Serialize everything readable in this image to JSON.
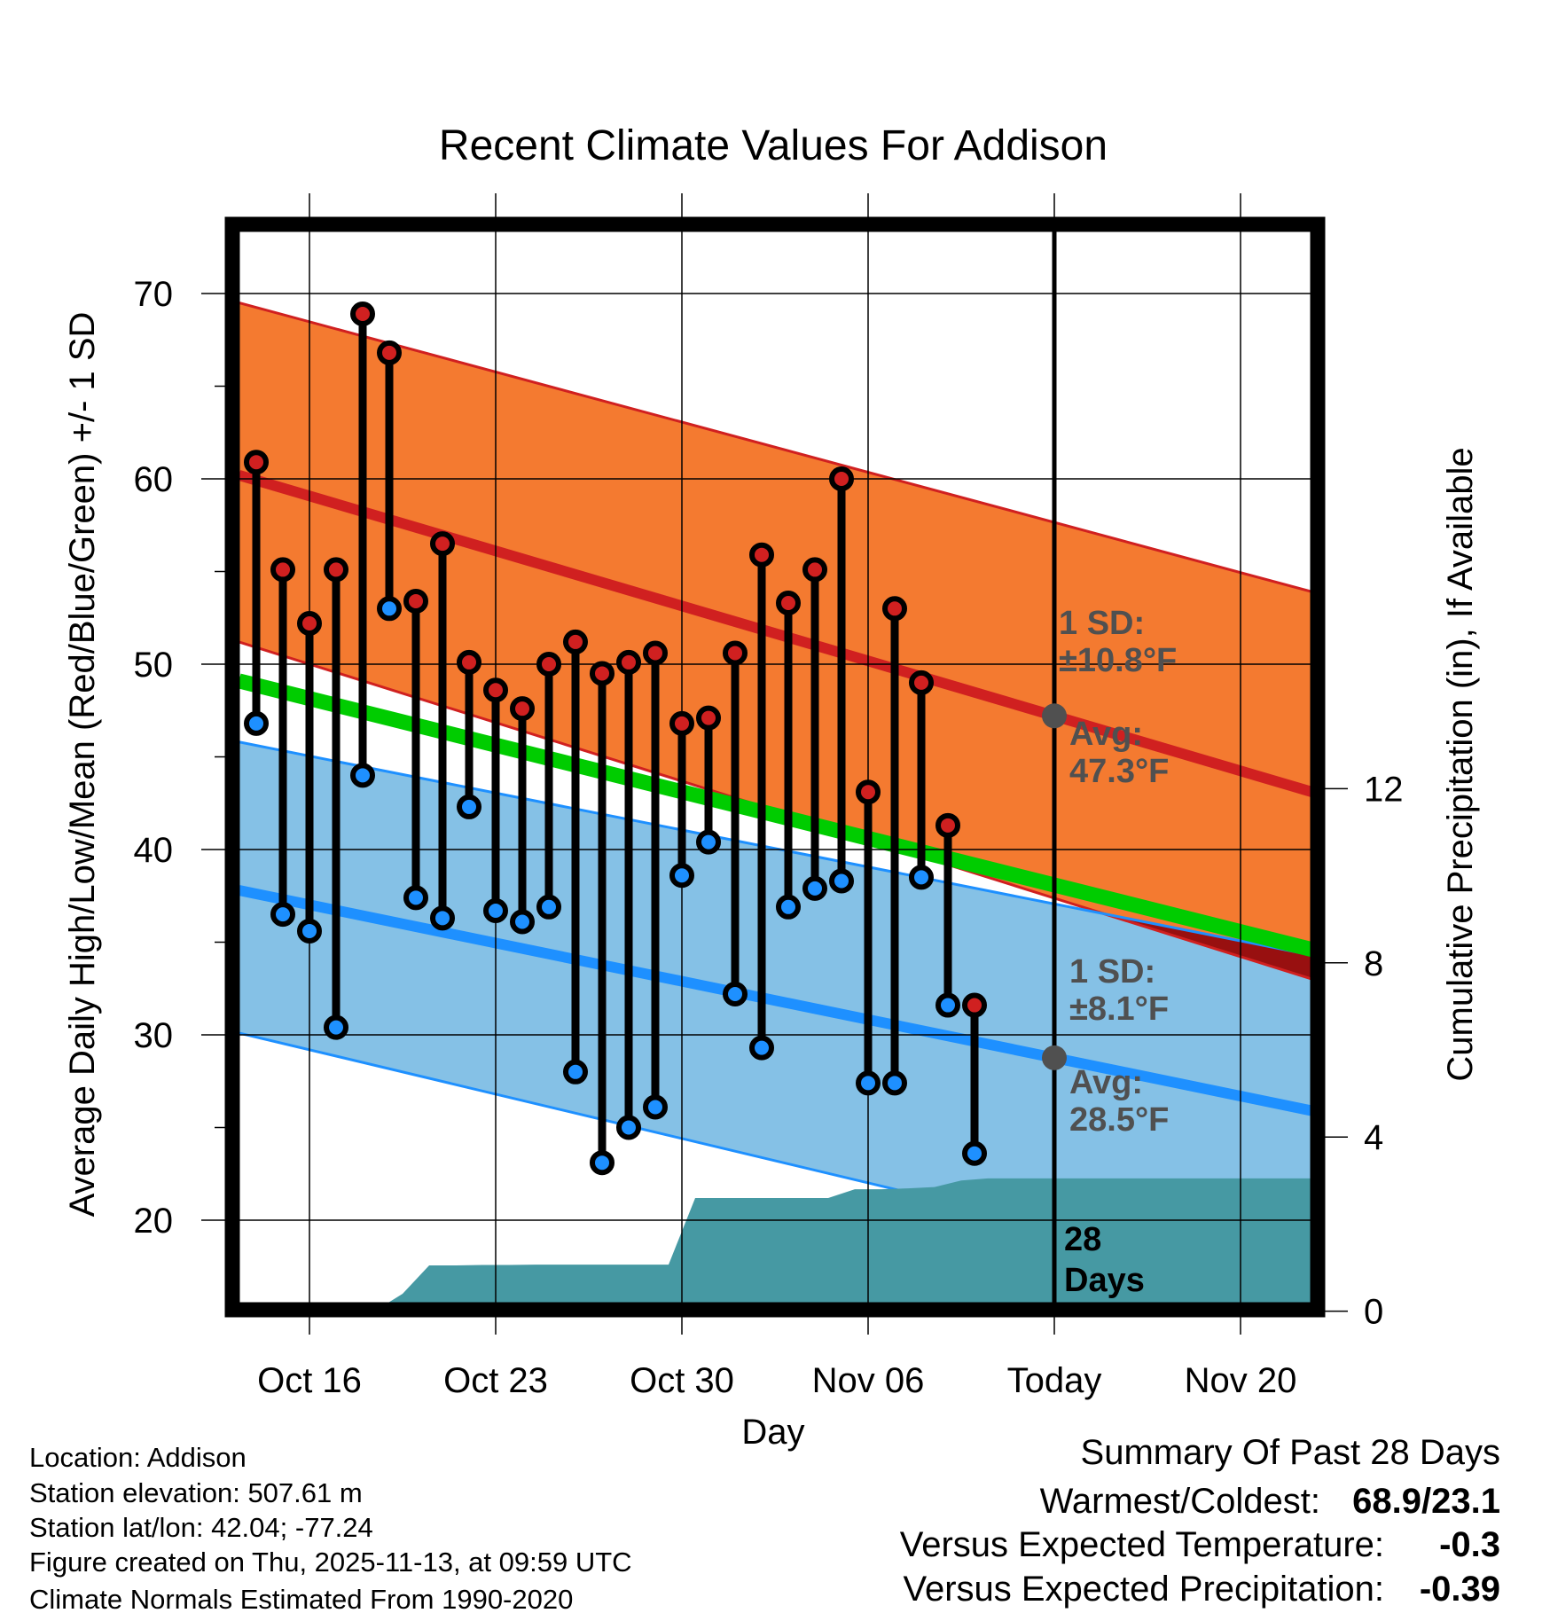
{
  "chart_data": {
    "type": "line",
    "title": "Recent Climate Values For Addison",
    "xlabel": "Day",
    "ylabel": "Average Daily High/Low/Mean (Red/Blue/Green) +/- 1 SD",
    "y2label": "Cumulative Precipitation (in), If Available",
    "ylim": [
      15.1,
      73.5
    ],
    "y2lim": [
      0,
      15.2
    ],
    "yticks": [
      "70",
      "60",
      "50",
      "40",
      "30",
      "20"
    ],
    "y2ticks": [
      "12",
      "8",
      "4",
      "0"
    ],
    "xticks": [
      "Oct 16",
      "Oct 23",
      "Oct 30",
      "Nov 06",
      "Today",
      "Nov 20"
    ],
    "grid": true,
    "dates": [
      "Oct 14",
      "Oct 15",
      "Oct 16",
      "Oct 17",
      "Oct 18",
      "Oct 19",
      "Oct 20",
      "Oct 21",
      "Oct 22",
      "Oct 23",
      "Oct 24",
      "Oct 25",
      "Oct 26",
      "Oct 27",
      "Oct 28",
      "Oct 29",
      "Oct 30",
      "Oct 31",
      "Nov 01",
      "Nov 02",
      "Nov 03",
      "Nov 04",
      "Nov 05",
      "Nov 06",
      "Nov 07",
      "Nov 08",
      "Nov 09",
      "Nov 10"
    ],
    "series": [
      {
        "name": "Daily High",
        "color": "#d02020",
        "values": [
          60.9,
          55.1,
          52.2,
          55.1,
          68.9,
          66.8,
          53.4,
          56.5,
          50.1,
          48.6,
          47.6,
          50.0,
          51.2,
          49.5,
          50.1,
          50.6,
          46.8,
          47.1,
          50.6,
          55.9,
          53.3,
          55.1,
          60.0,
          43.1,
          53.0,
          49.0,
          41.3,
          31.6
        ]
      },
      {
        "name": "Daily Low",
        "color": "#1e90ff",
        "values": [
          46.8,
          36.5,
          35.6,
          30.4,
          44.0,
          53.0,
          37.4,
          36.3,
          42.3,
          36.7,
          36.1,
          36.9,
          28.0,
          23.1,
          25.0,
          26.1,
          38.6,
          40.4,
          32.2,
          29.3,
          36.9,
          37.9,
          38.3,
          27.4,
          27.4,
          38.5,
          31.6,
          23.6
        ]
      },
      {
        "name": "Cumulative Precipitation",
        "color": "#4699a3",
        "values": [
          0,
          0,
          0,
          0,
          0.02,
          0.4,
          1.05,
          1.05,
          1.06,
          1.06,
          1.07,
          1.07,
          1.07,
          1.07,
          1.07,
          1.07,
          2.6,
          2.6,
          2.6,
          2.6,
          2.6,
          2.6,
          2.8,
          2.8,
          2.82,
          2.85,
          3.0,
          3.05
        ]
      }
    ],
    "normals": {
      "day_offsets_from_oct14": [
        -0.65,
        39.7
      ],
      "high": {
        "upper": [
          69.5,
          53.9
        ],
        "mean": [
          60.2,
          43.1
        ],
        "lower": [
          51.2,
          33.0
        ]
      },
      "low": {
        "upper": [
          45.8,
          34.3
        ],
        "mean": [
          37.8,
          25.9
        ],
        "lower": [
          30.1,
          16.3
        ]
      },
      "mean": [
        49.1,
        34.6
      ]
    },
    "today_offset_from_oct14": 30,
    "annotations": {
      "high_sd_label": "1 SD:",
      "high_sd_value": "±10.8°F",
      "high_avg_label": "Avg:",
      "high_avg_value": "47.3°F",
      "low_sd_label": "1 SD:",
      "low_sd_value": "±8.1°F",
      "low_avg_label": "Avg:",
      "low_avg_value": "28.5°F",
      "days_count": "28",
      "days_word": "Days"
    },
    "colors": {
      "high_band": "#f47a30",
      "high_line": "#d02020",
      "low_band": "#85c1e6",
      "low_line": "#1e90ff",
      "mean_line": "#00cc00",
      "overlap": "#981010",
      "precip": "#4699a3",
      "annotation": "#505050"
    }
  },
  "footer": {
    "location": "Location: Addison",
    "elevation": "Station elevation: 507.61 m",
    "latlon": "Station lat/lon: 42.04; -77.24",
    "created": "Figure created on Thu, 2025-11-13, at 09:59 UTC",
    "normals": "Climate Normals Estimated From 1990-2020"
  },
  "summary": {
    "title": "Summary Of Past 28 Days",
    "warm_cold_label": "Warmest/Coldest:",
    "warm_cold_value": "68.9/23.1",
    "temp_label": "Versus Expected Temperature:",
    "temp_value": "-0.3",
    "temp_color": "#1e90ff",
    "precip_label": "Versus Expected Precipitation:",
    "precip_value": "-0.39",
    "precip_color": "#a0522d"
  }
}
